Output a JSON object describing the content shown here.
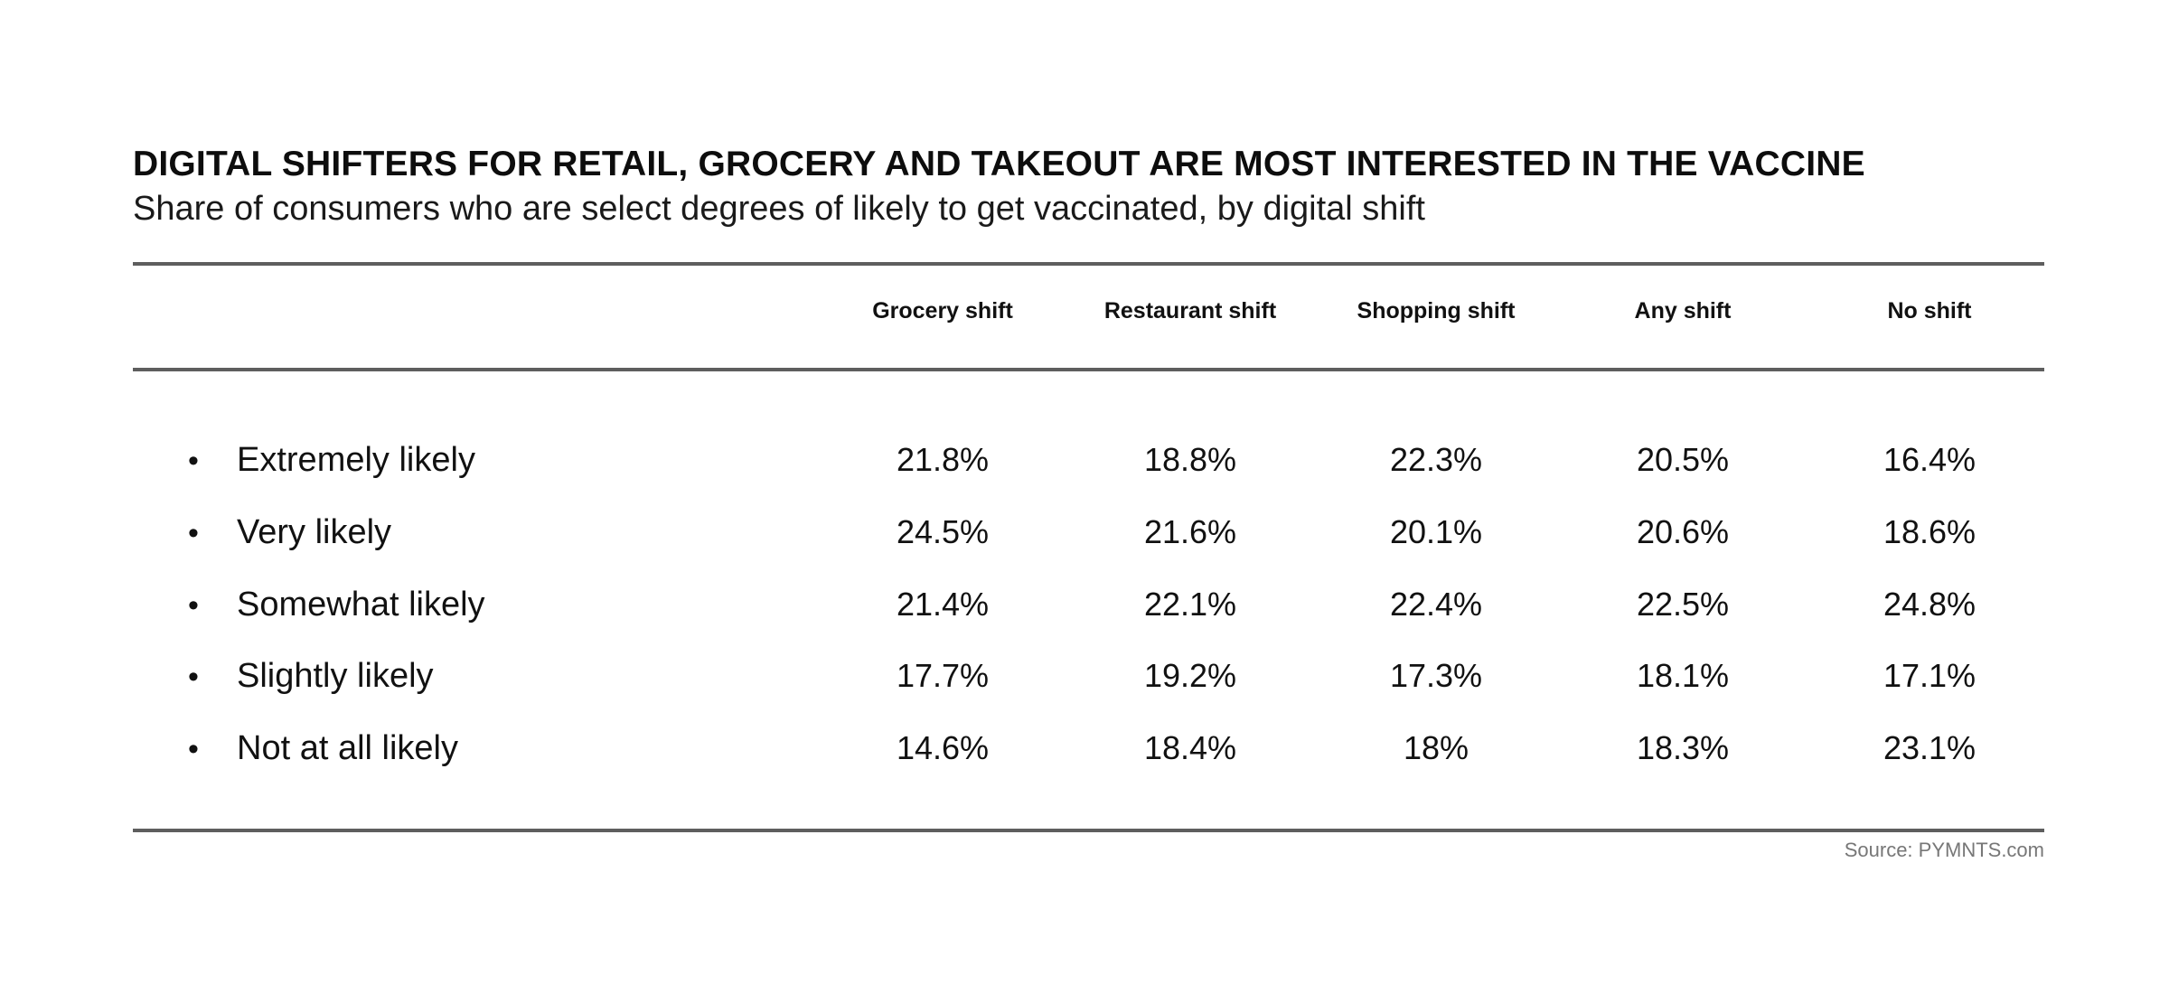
{
  "chart_data": {
    "type": "table",
    "title": "DIGITAL SHIFTERS FOR RETAIL, GROCERY AND TAKEOUT ARE MOST INTERESTED IN THE VACCINE",
    "subtitle": "Share of consumers who are select degrees of likely to get vaccinated, by digital shift",
    "columns": [
      "Grocery shift",
      "Restaurant shift",
      "Shopping shift",
      "Any shift",
      "No shift"
    ],
    "rows": [
      {
        "label": "Extremely likely",
        "values": [
          "21.8%",
          "18.8%",
          "22.3%",
          "20.5%",
          "16.4%"
        ]
      },
      {
        "label": "Very likely",
        "values": [
          "24.5%",
          "21.6%",
          "20.1%",
          "20.6%",
          "18.6%"
        ]
      },
      {
        "label": "Somewhat likely",
        "values": [
          "21.4%",
          "22.1%",
          "22.4%",
          "22.5%",
          "24.8%"
        ]
      },
      {
        "label": "Slightly likely",
        "values": [
          "17.7%",
          "19.2%",
          "17.3%",
          "18.1%",
          "17.1%"
        ]
      },
      {
        "label": "Not at all likely",
        "values": [
          "14.6%",
          "18.4%",
          "18%",
          "18.3%",
          "23.1%"
        ]
      }
    ],
    "bullet": "•",
    "source": "Source: PYMNTS.com"
  }
}
